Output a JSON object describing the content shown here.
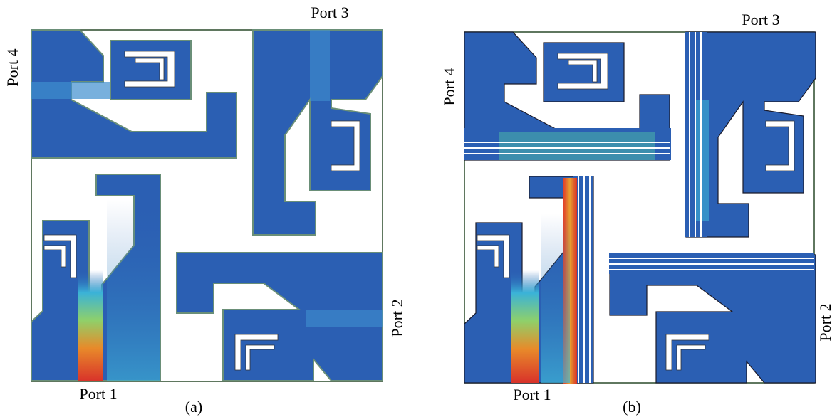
{
  "panels": [
    {
      "caption": "(a)",
      "ports": [
        "Port 1",
        "Port 2",
        "Port 3",
        "Port 4"
      ]
    },
    {
      "caption": "(b)",
      "ports": [
        "Port 1",
        "Port 2",
        "Port 3",
        "Port 4"
      ]
    }
  ]
}
